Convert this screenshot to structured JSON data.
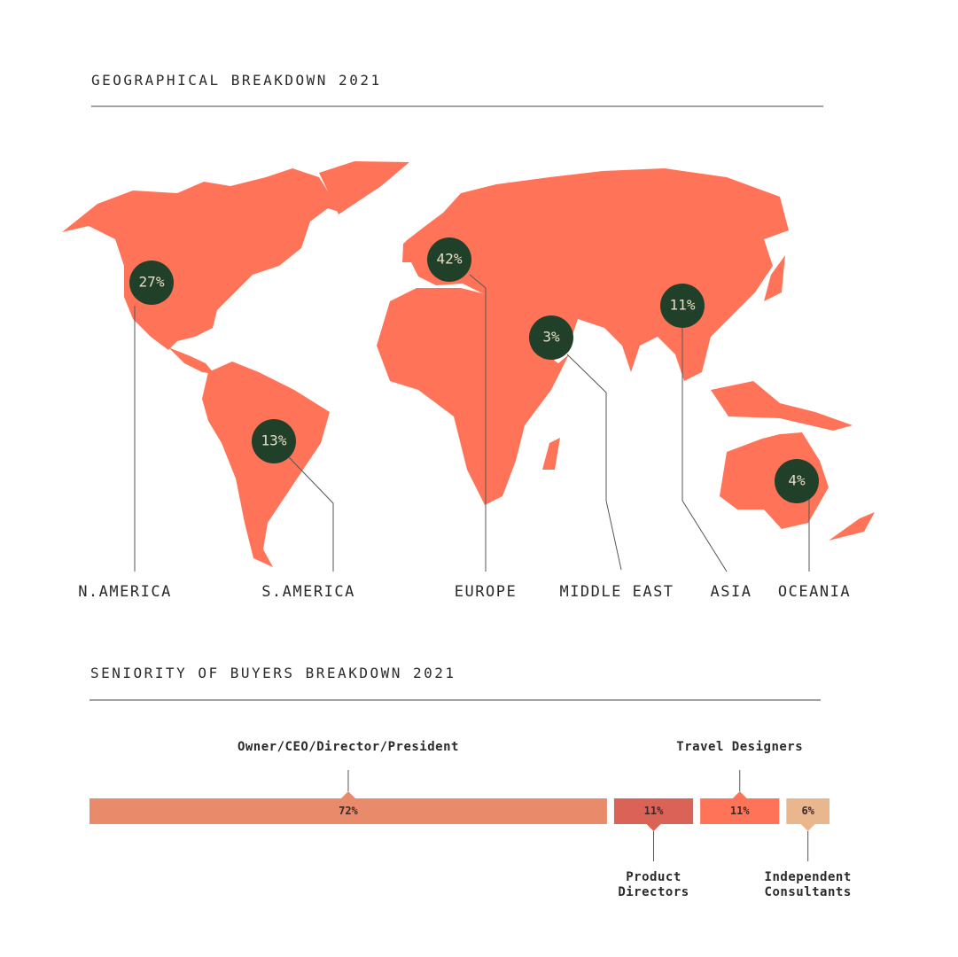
{
  "chart_data": [
    {
      "type": "map",
      "title": "GEOGRAPHICAL BREAKDOWN 2021",
      "categories": [
        "N.AMERICA",
        "S.AMERICA",
        "EUROPE",
        "MIDDLE EAST",
        "ASIA",
        "OCEANIA"
      ],
      "values": [
        27,
        13,
        42,
        3,
        11,
        4
      ],
      "value_labels": [
        "27%",
        "13%",
        "42%",
        "3%",
        "11%",
        "4%"
      ],
      "color": "#ff7459",
      "bubble_color": "#21402a"
    },
    {
      "type": "stacked-bar",
      "title": "SENIORITY OF BUYERS BREAKDOWN 2021",
      "categories": [
        "Owner/CEO/Director/President",
        "Product Directors",
        "Travel Designers",
        "Independent Consultants"
      ],
      "values": [
        72,
        11,
        11,
        6
      ],
      "value_labels": [
        "72%",
        "11%",
        "11%",
        "6%"
      ],
      "colors": [
        "#e98a6b",
        "#db6256",
        "#ff7459",
        "#e9b68d"
      ]
    }
  ]
}
